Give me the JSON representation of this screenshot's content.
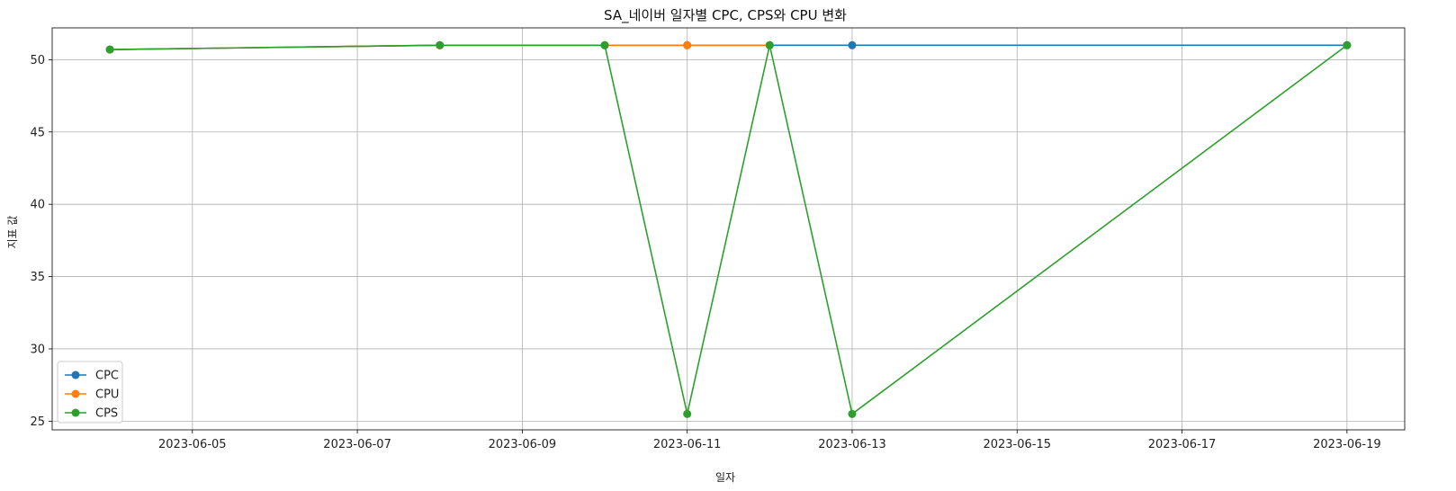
{
  "chart_data": {
    "type": "line",
    "title": "SA_네이버 일자별 CPC, CPS와 CPU 변화",
    "xlabel": "일자",
    "ylabel": "지표 값",
    "xlim": [
      "2023-06-03",
      "2023-06-19"
    ],
    "ylim": [
      25,
      52
    ],
    "x_ticks": [
      "2023-06-05",
      "2023-06-07",
      "2023-06-09",
      "2023-06-11",
      "2023-06-13",
      "2023-06-15",
      "2023-06-17",
      "2023-06-19"
    ],
    "y_ticks": [
      25,
      30,
      35,
      40,
      45,
      50
    ],
    "grid": true,
    "legend_position": "lower-left",
    "series": [
      {
        "name": "CPC",
        "color": "#1f77b4",
        "points": [
          {
            "x": "2023-06-04",
            "y": 50.7
          },
          {
            "x": "2023-06-08",
            "y": 51.0
          },
          {
            "x": "2023-06-10",
            "y": 51.0
          },
          {
            "x": "2023-06-11",
            "y": 51.0
          },
          {
            "x": "2023-06-12",
            "y": 51.0
          },
          {
            "x": "2023-06-13",
            "y": 51.0
          },
          {
            "x": "2023-06-19",
            "y": 51.0
          }
        ]
      },
      {
        "name": "CPU",
        "color": "#ff7f0e",
        "points": [
          {
            "x": "2023-06-04",
            "y": 50.7
          },
          {
            "x": "2023-06-08",
            "y": 51.0
          },
          {
            "x": "2023-06-10",
            "y": 51.0
          },
          {
            "x": "2023-06-11",
            "y": 51.0
          },
          {
            "x": "2023-06-12",
            "y": 51.0
          }
        ]
      },
      {
        "name": "CPS",
        "color": "#2ca02c",
        "points": [
          {
            "x": "2023-06-04",
            "y": 50.7
          },
          {
            "x": "2023-06-08",
            "y": 51.0
          },
          {
            "x": "2023-06-10",
            "y": 51.0
          },
          {
            "x": "2023-06-11",
            "y": 25.5
          },
          {
            "x": "2023-06-12",
            "y": 51.0
          },
          {
            "x": "2023-06-13",
            "y": 25.5
          },
          {
            "x": "2023-06-19",
            "y": 51.0
          }
        ]
      }
    ]
  }
}
